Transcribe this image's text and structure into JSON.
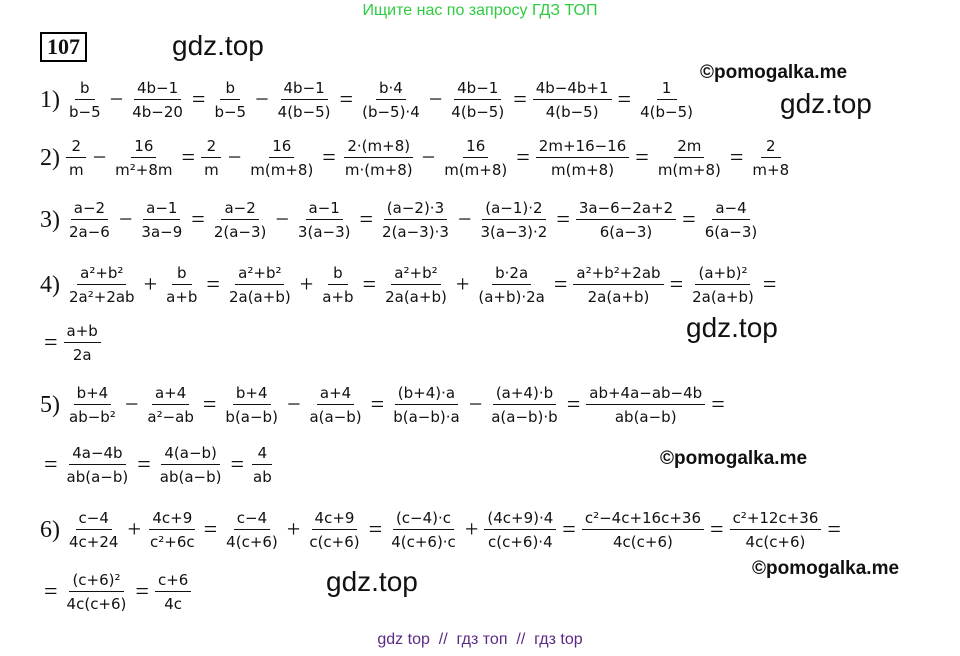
{
  "banner": "Ищите нас по запросу ГДЗ ТОП",
  "problem_number": "107",
  "watermarks": [
    "gdz.top",
    "©pomogalka.me",
    "gdz.top",
    "gdz.top",
    "©pomogalka.me",
    "©pomogalka.me",
    "gdz.top"
  ],
  "lines": [
    [
      "1)",
      {
        "num": "b",
        "den": "b−5"
      },
      "−",
      {
        "num": "4b−1",
        "den": "4b−20"
      },
      "=",
      {
        "num": "b",
        "den": "b−5"
      },
      "−",
      {
        "num": "4b−1",
        "den": "4(b−5)"
      },
      "=",
      {
        "num": "b·4",
        "den": "(b−5)·4"
      },
      "−",
      {
        "num": "4b−1",
        "den": "4(b−5)"
      },
      "=",
      {
        "num": "4b−4b+1",
        "den": "4(b−5)"
      },
      "=",
      {
        "num": "1",
        "den": "4(b−5)"
      }
    ],
    [
      "2)",
      {
        "num": "2",
        "den": "m"
      },
      "−",
      {
        "num": "16",
        "den": "m²+8m"
      },
      "=",
      {
        "num": "2",
        "den": "m"
      },
      "−",
      {
        "num": "16",
        "den": "m(m+8)"
      },
      "=",
      {
        "num": "2·(m+8)",
        "den": "m·(m+8)"
      },
      "−",
      {
        "num": "16",
        "den": "m(m+8)"
      },
      "=",
      {
        "num": "2m+16−16",
        "den": "m(m+8)"
      },
      "=",
      {
        "num": "2m",
        "den": "m(m+8)"
      },
      "=",
      {
        "num": "2",
        "den": "m+8"
      }
    ],
    [
      "3)",
      {
        "num": "a−2",
        "den": "2a−6"
      },
      "−",
      {
        "num": "a−1",
        "den": "3a−9"
      },
      "=",
      {
        "num": "a−2",
        "den": "2(a−3)"
      },
      "−",
      {
        "num": "a−1",
        "den": "3(a−3)"
      },
      "=",
      {
        "num": "(a−2)·3",
        "den": "2(a−3)·3"
      },
      "−",
      {
        "num": "(a−1)·2",
        "den": "3(a−3)·2"
      },
      "=",
      {
        "num": "3a−6−2a+2",
        "den": "6(a−3)"
      },
      "=",
      {
        "num": "a−4",
        "den": "6(a−3)"
      }
    ],
    [
      "4)",
      {
        "num": "a²+b²",
        "den": "2a²+2ab"
      },
      "+",
      {
        "num": "b",
        "den": "a+b"
      },
      "=",
      {
        "num": "a²+b²",
        "den": "2a(a+b)"
      },
      "+",
      {
        "num": "b",
        "den": "a+b"
      },
      "=",
      {
        "num": "a²+b²",
        "den": "2a(a+b)"
      },
      "+",
      {
        "num": "b·2a",
        "den": "(a+b)·2a"
      },
      "=",
      {
        "num": "a²+b²+2ab",
        "den": "2a(a+b)"
      },
      "=",
      {
        "num": "(a+b)²",
        "den": "2a(a+b)"
      },
      "="
    ],
    [
      "=",
      {
        "num": "a+b",
        "den": "2a"
      }
    ],
    [
      "5)",
      {
        "num": "b+4",
        "den": "ab−b²"
      },
      "−",
      {
        "num": "a+4",
        "den": "a²−ab"
      },
      "=",
      {
        "num": "b+4",
        "den": "b(a−b)"
      },
      "−",
      {
        "num": "a+4",
        "den": "a(a−b)"
      },
      "=",
      {
        "num": "(b+4)·a",
        "den": "b(a−b)·a"
      },
      "−",
      {
        "num": "(a+4)·b",
        "den": "a(a−b)·b"
      },
      "=",
      {
        "num": "ab+4a−ab−4b",
        "den": "ab(a−b)"
      },
      "="
    ],
    [
      "=",
      {
        "num": "4a−4b",
        "den": "ab(a−b)"
      },
      "=",
      {
        "num": "4(a−b)",
        "den": "ab(a−b)"
      },
      "=",
      {
        "num": "4",
        "den": "ab"
      }
    ],
    [
      "6)",
      {
        "num": "c−4",
        "den": "4c+24"
      },
      "+",
      {
        "num": "4c+9",
        "den": "c²+6c"
      },
      "=",
      {
        "num": "c−4",
        "den": "4(c+6)"
      },
      "+",
      {
        "num": "4c+9",
        "den": "c(c+6)"
      },
      "=",
      {
        "num": "(c−4)·c",
        "den": "4(c+6)·c"
      },
      "+",
      {
        "num": "(4c+9)·4",
        "den": "c(c+6)·4"
      },
      "=",
      {
        "num": "c²−4c+16c+36",
        "den": "4c(c+6)"
      },
      "=",
      {
        "num": "c²+12c+36",
        "den": "4c(c+6)"
      },
      "="
    ],
    [
      "=",
      {
        "num": "(c+6)²",
        "den": "4c(c+6)"
      },
      "=",
      {
        "num": "c+6",
        "den": "4c"
      }
    ]
  ],
  "footer": "gdz top  //  гдз топ  //  гдз top"
}
